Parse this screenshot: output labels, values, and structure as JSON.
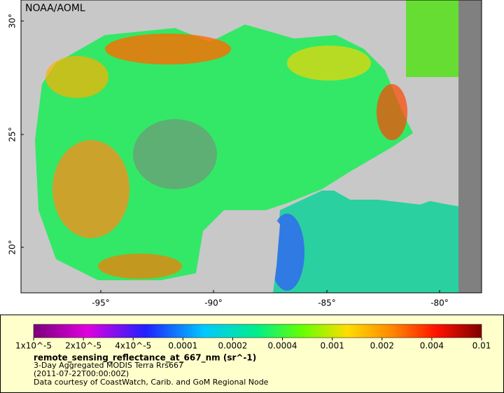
{
  "map": {
    "credit": "NOAA/AOML",
    "lat_labels": [
      "20°",
      "25°",
      "30°"
    ],
    "lon_labels": [
      "-95°",
      "-90°",
      "-85°",
      "-80°"
    ]
  },
  "legend": {
    "colorbar_labels": [
      "1x10^-5",
      "2x10^-5",
      "4x10^-5",
      "0.0001",
      "0.0002",
      "0.0004",
      "0.001",
      "0.002",
      "0.004",
      "0.01"
    ],
    "variable": "remote_sensing_reflectance_at_667_nm (sr^-1)",
    "lines": [
      "3-Day Aggregated MODIS Terra Rrs667",
      "(2011-07-22T00:00:00Z)",
      "Data courtesy of CoastWatch, Carib. and GoM Regional Node"
    ]
  }
}
